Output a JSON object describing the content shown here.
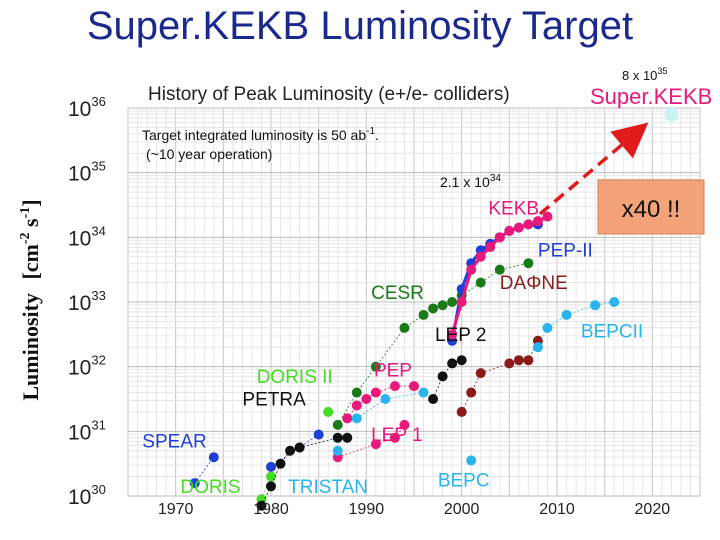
{
  "slide_title": "Super.KEKB Luminosity Target",
  "chart_data": {
    "type": "scatter",
    "title": "History of Peak Luminosity (e+/e- colliders)",
    "ylabel_main": "Luminosity",
    "ylabel_unit": "[cm",
    "ylabel_exp1": "-2",
    "ylabel_s": " s",
    "ylabel_exp2": "-1",
    "ylabel_close": "]",
    "log_y": true,
    "xlim": [
      1965,
      2025
    ],
    "ylim_exp": [
      30,
      36
    ],
    "grid": true,
    "x_ticks": [
      "1970",
      "1980",
      "1990",
      "2000",
      "2010",
      "2020"
    ],
    "y_ticks": [
      {
        "base": "10",
        "exp": "30"
      },
      {
        "base": "10",
        "exp": "31"
      },
      {
        "base": "10",
        "exp": "32"
      },
      {
        "base": "10",
        "exp": "33"
      },
      {
        "base": "10",
        "exp": "34"
      },
      {
        "base": "10",
        "exp": "35"
      },
      {
        "base": "10",
        "exp": "36"
      }
    ],
    "annotations": {
      "target_line1_pre": "Target integrated luminosity is 50 ab",
      "target_line1_sup": "-1",
      "target_line1_post": ".",
      "target_line2": "(~10 year operation)",
      "kekb_value_pre": "2.1 x 10",
      "kekb_value_exp": "34",
      "superkekb_value_pre": "8 x 10",
      "superkekb_value_exp": "35",
      "superkekb_label": "Super.KEKB",
      "factor_box": "x40 !!"
    },
    "colors": {
      "title": "#1a2a8c",
      "magenta": "#e8197a",
      "blue": "#1f3fd6",
      "dark_green": "#1a7a1a",
      "black": "#111111",
      "dark_red": "#8b1a1a",
      "cyan": "#2ab4ef",
      "green": "#44dd22",
      "pale_cyan": "#c8f3ee",
      "box_fill": "#f4a278",
      "arrow": "#e01b1b"
    },
    "series": [
      {
        "name": "SPEAR",
        "color": "#1f3fd6",
        "x": [
          1972,
          1974
        ],
        "y": [
          30.2,
          30.6
        ]
      },
      {
        "name": "DORIS",
        "color": "#44dd22",
        "x": [
          1979,
          1980
        ],
        "y": [
          29.95,
          30.3
        ]
      },
      {
        "name": "PETRA",
        "color": "#1f3fd6",
        "x": [
          1980,
          1983,
          1985
        ],
        "y": [
          30.45,
          30.75,
          30.95
        ]
      },
      {
        "name": "PETRA",
        "color": "#111111",
        "x": [
          1979,
          1980,
          1981,
          1982,
          1983,
          1987,
          1988
        ],
        "y": [
          29.85,
          30.15,
          30.5,
          30.7,
          30.75,
          30.9,
          30.9
        ]
      },
      {
        "name": "DORIS II",
        "color": "#44dd22",
        "x": [
          1986
        ],
        "y": [
          31.3
        ]
      },
      {
        "name": "CESR",
        "color": "#1a7a1a",
        "x": [
          1987,
          1989,
          1991,
          1994,
          1996,
          1997,
          1998,
          1999,
          2000,
          2002,
          2004,
          2007
        ],
        "y": [
          31.1,
          31.6,
          32.0,
          32.6,
          32.8,
          32.9,
          32.95,
          33.0,
          33.1,
          33.3,
          33.5,
          33.6
        ]
      },
      {
        "name": "PEP",
        "color": "#e8197a",
        "x": [
          1988,
          1989,
          1990,
          1991,
          1993,
          1995
        ],
        "y": [
          31.2,
          31.4,
          31.5,
          31.6,
          31.7,
          31.7
        ]
      },
      {
        "name": "LEP 1",
        "color": "#2ab4ef",
        "x": [
          1989,
          1992,
          1996
        ],
        "y": [
          31.2,
          31.5,
          31.6
        ]
      },
      {
        "name": "LEP 1",
        "color": "#e8197a",
        "x": [
          1987,
          1991,
          1993,
          1994
        ],
        "y": [
          30.6,
          30.8,
          30.9,
          31.1
        ]
      },
      {
        "name": "TRISTAN",
        "color": "#2ab4ef",
        "x": [
          1987
        ],
        "y": [
          30.7
        ]
      },
      {
        "name": "LEP 2",
        "color": "#111111",
        "x": [
          1997,
          1998,
          1999,
          2000
        ],
        "y": [
          31.5,
          31.85,
          32.05,
          32.1
        ]
      },
      {
        "name": "BEPC",
        "color": "#2ab4ef",
        "x": [
          2001
        ],
        "y": [
          30.55
        ]
      },
      {
        "name": "PEP-II",
        "color": "#1f3fd6",
        "x": [
          1999,
          2000,
          2001,
          2002,
          2003,
          2004,
          2005,
          2006,
          2007,
          2008
        ],
        "y": [
          32.4,
          33.2,
          33.6,
          33.8,
          33.9,
          34.0,
          34.1,
          34.15,
          34.2,
          34.2
        ]
      },
      {
        "name": "KEKB",
        "color": "#e8197a",
        "x": [
          1999,
          2000,
          2001,
          2002,
          2003,
          2004,
          2005,
          2006,
          2007,
          2008,
          2009
        ],
        "y": [
          32.5,
          33.0,
          33.5,
          33.7,
          33.85,
          34.0,
          34.1,
          34.15,
          34.2,
          34.25,
          34.32
        ]
      },
      {
        "name": "DAΦNE",
        "color": "#8b1a1a",
        "x": [
          2000,
          2001,
          2002,
          2005,
          2006,
          2007,
          2008
        ],
        "y": [
          31.3,
          31.6,
          31.9,
          32.05,
          32.1,
          32.1,
          32.4
        ]
      },
      {
        "name": "BEPCII",
        "color": "#2ab4ef",
        "x": [
          2008,
          2009,
          2011,
          2014,
          2016
        ],
        "y": [
          32.3,
          32.6,
          32.8,
          32.95,
          33.0
        ]
      },
      {
        "name": "Super.KEKB",
        "color": "#c8f3ee",
        "x": [
          2022
        ],
        "y": [
          35.9
        ]
      }
    ],
    "labels": [
      {
        "name": "SPEAR",
        "text": "SPEAR",
        "color": "#1f3fd6",
        "x": 1966.5,
        "y": 30.75
      },
      {
        "name": "DORIS",
        "text": "DORIS",
        "color": "#44dd22",
        "x": 1970.5,
        "y": 30.05
      },
      {
        "name": "PETRA",
        "text": "PETRA",
        "color": "#111111",
        "x": 1977,
        "y": 31.4
      },
      {
        "name": "DORIS II",
        "text": "DORIS II",
        "color": "#44dd22",
        "x": 1978.5,
        "y": 31.75
      },
      {
        "name": "TRISTAN",
        "text": "TRISTAN",
        "color": "#2ab4ef",
        "x": 1981.8,
        "y": 30.05
      },
      {
        "name": "LEP 1",
        "text": "LEP 1",
        "color": "#e8197a",
        "x": 1990.5,
        "y": 30.85
      },
      {
        "name": "PEP",
        "text": "PEP",
        "color": "#e8197a",
        "x": 1990.8,
        "y": 31.85
      },
      {
        "name": "CESR",
        "text": "CESR",
        "color": "#1a7a1a",
        "x": 1990.5,
        "y": 33.05
      },
      {
        "name": "LEP 2",
        "text": "LEP 2",
        "color": "#111111",
        "x": 1997.2,
        "y": 32.4
      },
      {
        "name": "DAΦNE",
        "text": "DAΦNE",
        "color": "#8b1a1a",
        "x": 2004,
        "y": 33.2
      },
      {
        "name": "BEPC",
        "text": "BEPC",
        "color": "#2ab4ef",
        "x": 1997.5,
        "y": 30.15
      },
      {
        "name": "BEPCII",
        "text": "BEPCII",
        "color": "#2ab4ef",
        "x": 2012.5,
        "y": 32.45
      },
      {
        "name": "PEP-II",
        "text": "PEP-II",
        "color": "#1f3fd6",
        "x": 2008,
        "y": 33.7
      },
      {
        "name": "KEKB",
        "text": "KEKB",
        "color": "#e8197a",
        "x": 2002.8,
        "y": 34.35
      }
    ]
  }
}
